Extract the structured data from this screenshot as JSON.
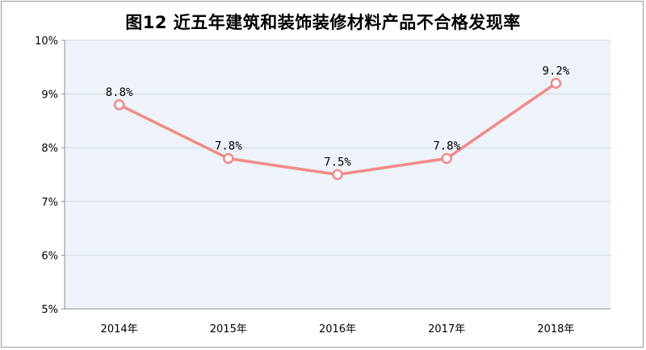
{
  "chart_data": {
    "type": "line",
    "title": "图12 近五年建筑和装饰装修材料产品不合格发现率",
    "categories": [
      "2014年",
      "2015年",
      "2016年",
      "2017年",
      "2018年"
    ],
    "series": [
      {
        "values": [
          8.8,
          7.8,
          7.5,
          7.8,
          9.2
        ],
        "data_labels": [
          "8.8%",
          "7.8%",
          "7.5%",
          "7.8%",
          "9.2%"
        ]
      }
    ],
    "ylim": [
      5,
      10
    ],
    "y_ticks": [
      5,
      6,
      7,
      8,
      9,
      10
    ],
    "y_tick_labels": [
      "5%",
      "6%",
      "7%",
      "8%",
      "9%",
      "10%"
    ],
    "grid": true,
    "plot_background": "#edf3f8",
    "line_color": "#f08a8a",
    "marker_fill": "#ffffff",
    "grid_color": "#cfd6dc"
  }
}
